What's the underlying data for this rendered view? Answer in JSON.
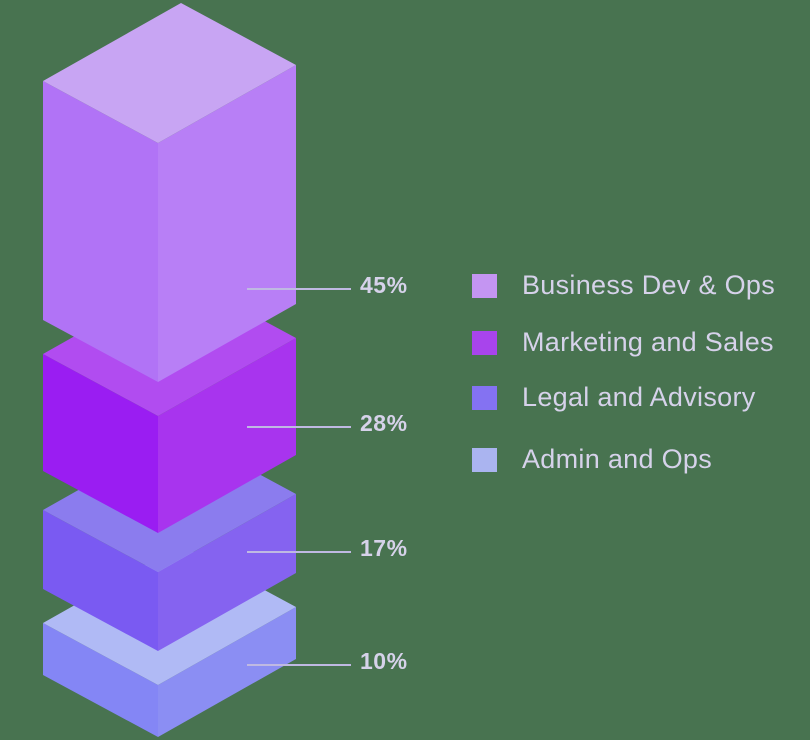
{
  "background_color": "#487350",
  "text_color": "#d6d2ea",
  "pointer_line_color": "#bfb9e2",
  "chart_data": {
    "type": "bar",
    "variant": "isometric-3d-stacked-blocks",
    "title": "",
    "xlabel": "",
    "ylabel": "",
    "unit": "%",
    "legend_position": "right",
    "categories": [
      "Business Dev & Ops",
      "Marketing and Sales",
      "Legal and Advisory",
      "Admin and Ops"
    ],
    "values": [
      45,
      28,
      17,
      10
    ],
    "segments": [
      {
        "label": "Business Dev & Ops",
        "value": 45,
        "value_label": "45%",
        "color_top": "#c8a5f3",
        "color_left": "#b173f6",
        "color_right": "#b87ff6",
        "swatch_color": "#c495f2"
      },
      {
        "label": "Marketing and Sales",
        "value": 28,
        "value_label": "28%",
        "color_top": "#b14cf0",
        "color_left": "#9a1df2",
        "color_right": "#a834ee",
        "swatch_color": "#a844ec"
      },
      {
        "label": "Legal and Advisory",
        "value": 17,
        "value_label": "17%",
        "color_top": "#8b7cee",
        "color_left": "#7a5af2",
        "color_right": "#8563f0",
        "swatch_color": "#8472f2"
      },
      {
        "label": "Admin and Ops",
        "value": 10,
        "value_label": "10%",
        "color_top": "#b0baf5",
        "color_left": "#8486f5",
        "color_right": "#8b8ef3",
        "swatch_color": "#aab4f0"
      }
    ]
  }
}
